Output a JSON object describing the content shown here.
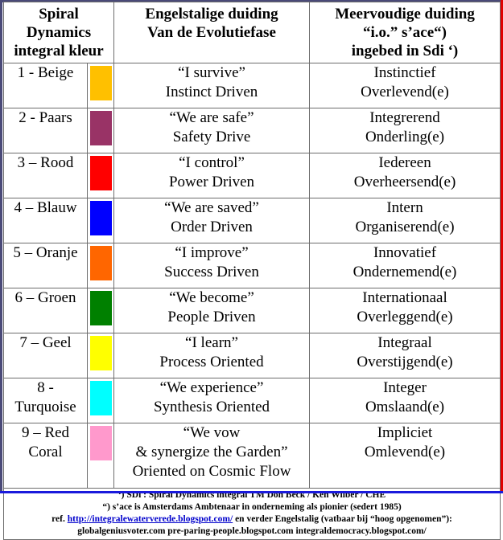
{
  "header": {
    "col1": [
      "Spiral",
      "Dynamics",
      "integral kleur"
    ],
    "col2": [
      "Engelstalige duiding",
      "Van de Evolutiefase"
    ],
    "col3": [
      "Meervoudige duiding",
      "“i.o.” s’ace“)",
      "ingebed in Sdi ‘)"
    ]
  },
  "rows": [
    {
      "name": [
        "1 - Beige"
      ],
      "color": "#ffc000",
      "english": [
        "“I survive”",
        "Instinct Driven"
      ],
      "dutch": [
        "Instinctief",
        "Overlevend(e)"
      ]
    },
    {
      "name": [
        "2 - Paars"
      ],
      "color": "#993366",
      "english": [
        "“We are safe”",
        "Safety Drive"
      ],
      "dutch": [
        "Integrerend",
        "Onderling(e)"
      ]
    },
    {
      "name": [
        "3 – Rood"
      ],
      "color": "#ff0000",
      "english": [
        "“I control”",
        "Power Driven"
      ],
      "dutch": [
        "Iedereen",
        "Overheersend(e)"
      ]
    },
    {
      "name": [
        "4 – Blauw"
      ],
      "color": "#0000ff",
      "english": [
        "“We are saved”",
        "Order Driven"
      ],
      "dutch": [
        "Intern",
        "Organiserend(e)"
      ]
    },
    {
      "name": [
        "5 – Oranje"
      ],
      "color": "#ff6600",
      "english": [
        "“I improve”",
        "Success Driven"
      ],
      "dutch": [
        "Innovatief",
        "Ondernemend(e)"
      ]
    },
    {
      "name": [
        "6 – Groen"
      ],
      "color": "#008000",
      "english": [
        "“We become”",
        "People Driven"
      ],
      "dutch": [
        "Internationaal",
        "Overleggend(e)"
      ]
    },
    {
      "name": [
        "7 – Geel"
      ],
      "color": "#ffff00",
      "english": [
        "“I learn”",
        "Process Oriented"
      ],
      "dutch": [
        "Integraal",
        "Overstijgend(e)"
      ]
    },
    {
      "name": [
        "8 -",
        "Turquoise"
      ],
      "color": "#00ffff",
      "english": [
        "“We experience”",
        "Synthesis Oriented"
      ],
      "dutch": [
        "Integer",
        "Omslaand(e)"
      ]
    },
    {
      "name": [
        "9 – Red",
        "Coral"
      ],
      "color": "#ff99cc",
      "english": [
        "“We vow",
        "& synergize the Garden”",
        "Oriented on Cosmic Flow"
      ],
      "dutch": [
        "Impliciet",
        "Omlevend(e)"
      ]
    }
  ],
  "footer": {
    "line1": "‘) SDi : Spiral Dynamics integral TM Don Beck / Ken Wilber / CHE",
    "line2": "“) s’ace is Amsterdams Ambtenaar in onderneming als pionier (sedert 1985)",
    "line3_prefix": "ref.",
    "line3_link": "http://integralewaterverede.blogspot.com/",
    "line3_suffix": "en verder Engelstalig (vatbaar bij “hoog opgenomen”):",
    "line4": "globalgeniusvoter.com pre-paring-people.blogspot.com integraldemocracy.blogspot.com/"
  }
}
